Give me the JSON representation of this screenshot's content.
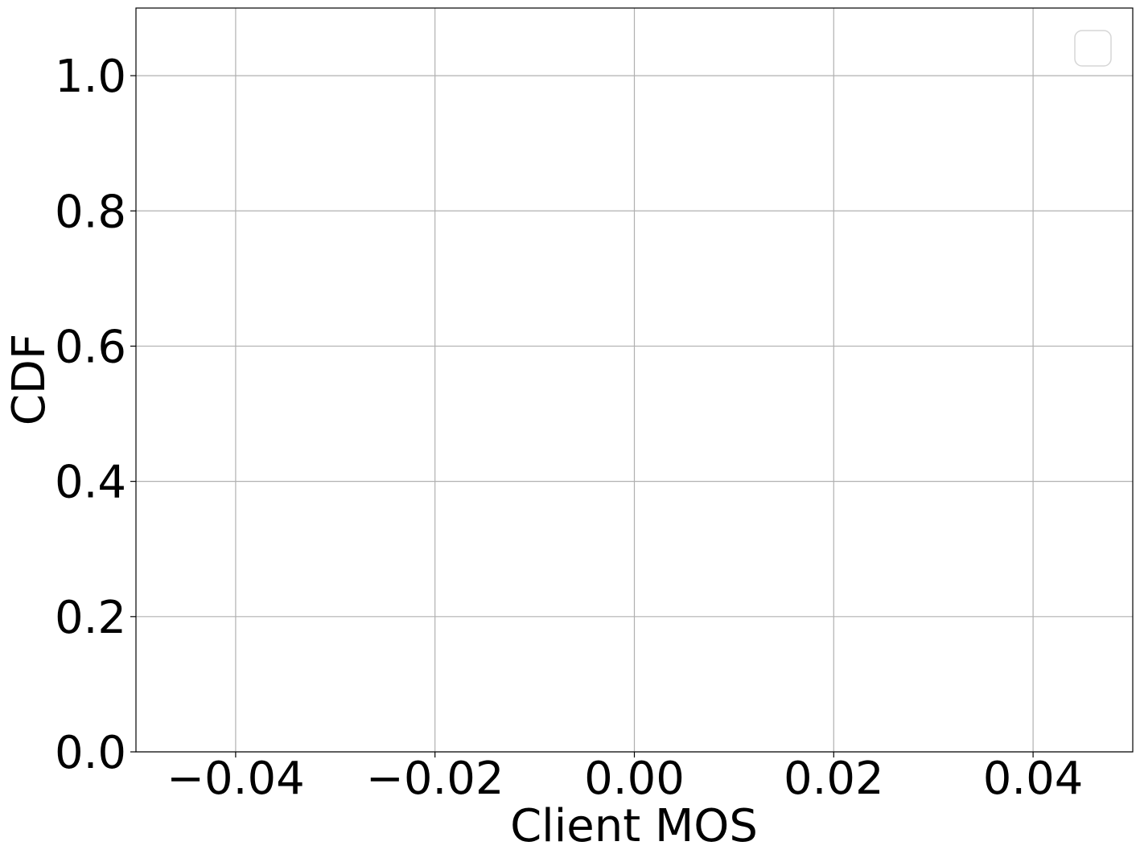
{
  "chart_data": {
    "type": "line",
    "series": [],
    "xlabel": "Client MOS",
    "ylabel": "CDF",
    "xlim": [
      -0.05,
      0.05
    ],
    "ylim": [
      0.0,
      1.1
    ],
    "xticks": [
      -0.04,
      -0.02,
      0.0,
      0.02,
      0.04
    ],
    "xtick_labels": [
      "−0.04",
      "−0.02",
      "0.00",
      "0.02",
      "0.04"
    ],
    "yticks": [
      0.0,
      0.2,
      0.4,
      0.6,
      0.8,
      1.0
    ],
    "ytick_labels": [
      "0.0",
      "0.2",
      "0.4",
      "0.6",
      "0.8",
      "1.0"
    ],
    "grid": true,
    "legend": {
      "placement": "top-right",
      "entries": []
    },
    "colors": {
      "grid": "#b0b0b0",
      "axes": "#000000",
      "text": "#000000",
      "legend_border": "#d6d6d6"
    }
  }
}
